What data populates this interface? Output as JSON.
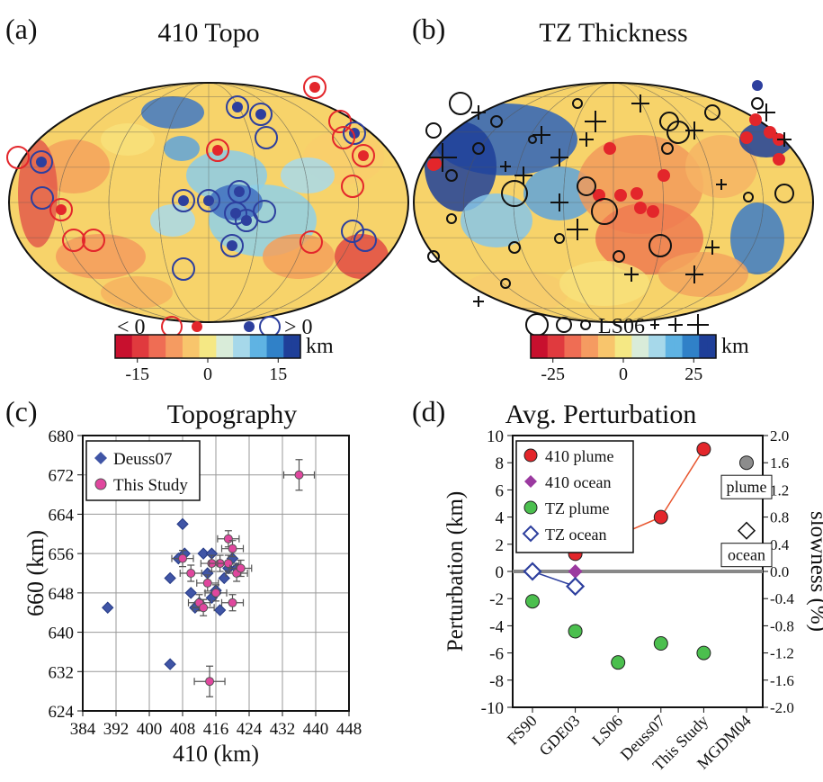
{
  "panels": {
    "a": {
      "letter": "(a)",
      "title": "410 Topo"
    },
    "b": {
      "letter": "(b)",
      "title": "TZ Thickness"
    },
    "c": {
      "letter": "(c)",
      "title": "Topography"
    },
    "d": {
      "letter": "(d)",
      "title": "Avg. Perturbation"
    }
  },
  "legend_a": {
    "neg_label": "< 0",
    "pos_label": "> 0",
    "unit": "km"
  },
  "legend_b": {
    "ref_label": "LS06",
    "unit": "km"
  },
  "colors": {
    "red": "#e3262b",
    "blue": "#2d3f9e",
    "magenta": "#e0479e",
    "diamond_blue": "#4055a6",
    "purple": "#9b3aa0",
    "green": "#4bbf4e",
    "gray": "#8c8c8c",
    "scale": [
      "#c8102e",
      "#e03a3e",
      "#ef6d54",
      "#f59b61",
      "#f8c56c",
      "#f5e884",
      "#d9ecd9",
      "#a6d8ea",
      "#5fb3e3",
      "#3081c8",
      "#1f3f99"
    ]
  },
  "chart_data": [
    {
      "type": "scatter",
      "panel": "c",
      "title": "Topography",
      "xlabel": "410 (km)",
      "ylabel": "660 (km)",
      "xlim": [
        384,
        448
      ],
      "ylim": [
        624,
        680
      ],
      "xticks": [
        "384",
        "392",
        "400",
        "408",
        "416",
        "424",
        "432",
        "440",
        "448"
      ],
      "yticks": [
        "624",
        "632",
        "640",
        "648",
        "656",
        "664",
        "672",
        "680"
      ],
      "grid": true,
      "legend_position": "top-left",
      "series": [
        {
          "name": "Deuss07",
          "marker": "diamond",
          "points": [
            [
              390,
              645
            ],
            [
              405,
              651
            ],
            [
              405,
              633.5
            ],
            [
              407,
              655
            ],
            [
              408,
              662
            ],
            [
              408.5,
              656
            ],
            [
              410,
              648
            ],
            [
              411,
              645
            ],
            [
              412,
              646
            ],
            [
              413,
              656
            ],
            [
              414,
              652
            ],
            [
              415,
              647
            ],
            [
              415,
              656
            ],
            [
              416,
              648
            ],
            [
              417,
              644.5
            ],
            [
              418,
              651
            ],
            [
              419,
              653
            ],
            [
              420,
              655
            ],
            [
              421,
              653
            ],
            [
              416,
              648.5
            ]
          ]
        },
        {
          "name": "This Study",
          "marker": "circle",
          "errorbars": true,
          "points": [
            [
              408,
              655
            ],
            [
              410,
              652
            ],
            [
              412,
              646
            ],
            [
              413,
              645
            ],
            [
              414,
              650
            ],
            [
              415,
              654
            ],
            [
              416,
              648
            ],
            [
              417,
              654
            ],
            [
              419,
              654
            ],
            [
              419,
              659
            ],
            [
              420,
              657
            ],
            [
              421,
              652
            ],
            [
              422,
              653
            ],
            [
              420,
              646
            ],
            [
              414.5,
              630
            ],
            [
              436,
              672
            ]
          ]
        }
      ]
    },
    {
      "type": "line",
      "panel": "d",
      "title": "Avg. Perturbation",
      "ylabel": "Perturbation (km)",
      "y2label": "slowness (%)",
      "categories": [
        "FS90",
        "GDE03",
        "LS06",
        "Deuss07",
        "This Study",
        "MGDM04"
      ],
      "ylim": [
        -10,
        10
      ],
      "y2lim": [
        -2.0,
        2.0
      ],
      "yticks": [
        "-10",
        "-8",
        "-6",
        "-4",
        "-2",
        "0",
        "2",
        "4",
        "6",
        "8",
        "10"
      ],
      "y2ticks": [
        "-2.0",
        "-1.6",
        "-1.2",
        "-0.8",
        "-0.4",
        "0.0",
        "0.4",
        "0.8",
        "1.2",
        "1.6",
        "2.0"
      ],
      "legend_position": "top-left",
      "series": [
        {
          "name": "410 plume",
          "marker": "circle",
          "points": [
            [
              0,
              2
            ],
            [
              1,
              1.3
            ],
            [
              3,
              4
            ],
            [
              4,
              9
            ]
          ],
          "line": true
        },
        {
          "name": "410 ocean",
          "marker": "diamond",
          "points": [
            [
              0,
              0
            ],
            [
              1,
              0
            ]
          ]
        },
        {
          "name": "TZ plume",
          "marker": "circle",
          "points": [
            [
              0,
              -2.2
            ],
            [
              1,
              -4.4
            ],
            [
              2,
              -6.7
            ],
            [
              3,
              -5.3
            ],
            [
              4,
              -6
            ]
          ]
        },
        {
          "name": "TZ ocean",
          "marker": "open-diamond",
          "points": [
            [
              0,
              0
            ],
            [
              1,
              -1.1
            ]
          ],
          "line": true
        }
      ],
      "secondary": [
        {
          "name": "plume",
          "marker": "circle",
          "category": 5,
          "y2": 1.6
        },
        {
          "name": "ocean",
          "marker": "open-diamond",
          "category": 5,
          "y2": 0.6
        }
      ]
    },
    {
      "type": "map",
      "panel": "a",
      "title": "410 Topo",
      "colorbar_ticks": [
        "-15",
        "0",
        "15"
      ],
      "colorbar_range": [
        -15,
        15
      ],
      "unit": "km"
    },
    {
      "type": "map",
      "panel": "b",
      "title": "TZ Thickness",
      "colorbar_ticks": [
        "-25",
        "0",
        "25"
      ],
      "colorbar_range": [
        -25,
        25
      ],
      "unit": "km"
    }
  ]
}
